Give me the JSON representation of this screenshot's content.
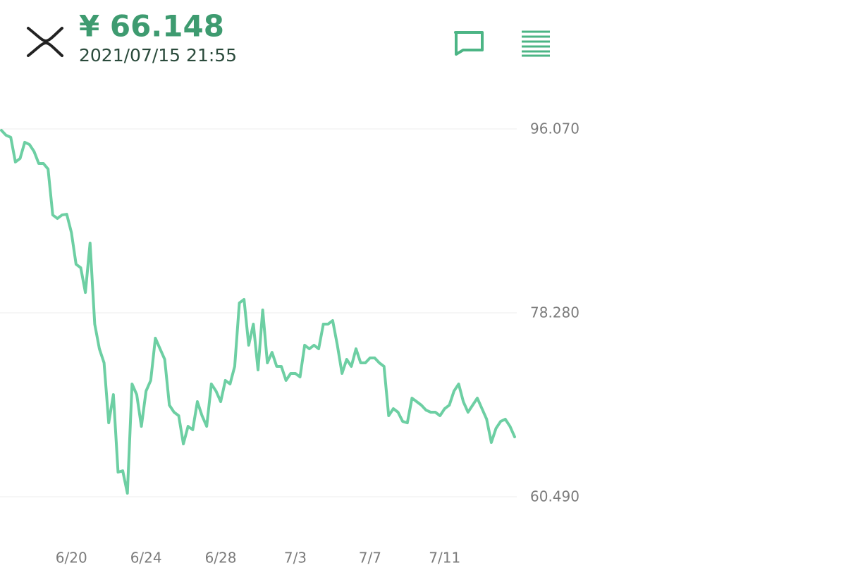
{
  "header": {
    "price": "¥ 66.148",
    "datetime": "2021/07/15 21:55"
  },
  "chart_data": {
    "type": "line",
    "color": "#6dcfa3",
    "grid": true,
    "ylim": [
      60.49,
      96.07
    ],
    "yticks": [
      {
        "value": 60.49,
        "label": "60.490"
      },
      {
        "value": 78.28,
        "label": "78.280"
      },
      {
        "value": 96.07,
        "label": "96.070"
      }
    ],
    "categories": [
      null,
      null,
      null,
      null,
      null,
      null,
      null,
      null,
      null,
      null,
      null,
      null,
      null,
      null,
      null,
      "6/20",
      null,
      null,
      null,
      null,
      null,
      null,
      null,
      null,
      null,
      null,
      null,
      null,
      null,
      null,
      null,
      "6/24",
      null,
      null,
      null,
      null,
      null,
      null,
      null,
      null,
      null,
      null,
      null,
      null,
      null,
      null,
      null,
      "6/28",
      null,
      null,
      null,
      null,
      null,
      null,
      null,
      null,
      null,
      null,
      null,
      null,
      null,
      null,
      null,
      "7/3",
      null,
      null,
      null,
      null,
      null,
      null,
      null,
      null,
      null,
      null,
      null,
      null,
      null,
      null,
      null,
      "7/7",
      null,
      null,
      null,
      null,
      null,
      null,
      null,
      null,
      null,
      null,
      null,
      null,
      null,
      null,
      null,
      "7/11",
      null,
      null,
      null,
      null,
      null,
      null,
      null,
      null,
      null,
      null,
      null,
      null,
      null,
      null,
      null
    ],
    "values": [
      95.93,
      95.46,
      95.26,
      92.87,
      93.21,
      94.78,
      94.57,
      93.89,
      92.73,
      92.73,
      92.19,
      87.75,
      87.41,
      87.75,
      87.82,
      86.05,
      82.98,
      82.64,
      80.25,
      85.03,
      77.19,
      74.8,
      73.44,
      67.64,
      70.37,
      62.87,
      63.0,
      60.83,
      71.4,
      70.37,
      67.3,
      70.71,
      71.74,
      75.83,
      74.8,
      73.78,
      69.35,
      68.67,
      68.33,
      65.6,
      67.3,
      66.97,
      69.69,
      68.33,
      67.3,
      71.4,
      70.71,
      69.69,
      71.74,
      71.4,
      73.1,
      79.24,
      79.58,
      75.15,
      77.19,
      72.76,
      78.56,
      73.44,
      74.46,
      73.1,
      73.1,
      71.74,
      72.42,
      72.42,
      72.08,
      75.15,
      74.8,
      75.15,
      74.8,
      77.19,
      77.19,
      77.53,
      75.15,
      72.42,
      73.78,
      73.1,
      74.8,
      73.44,
      73.44,
      73.92,
      73.92,
      73.44,
      73.1,
      68.33,
      69.01,
      68.67,
      67.78,
      67.64,
      70.03,
      69.69,
      69.35,
      68.87,
      68.67,
      68.67,
      68.33,
      69.01,
      69.35,
      70.71,
      71.4,
      69.69,
      68.67,
      69.35,
      70.03,
      69.01,
      67.99,
      65.74,
      67.1,
      67.78,
      67.99,
      67.3,
      66.28
    ]
  }
}
